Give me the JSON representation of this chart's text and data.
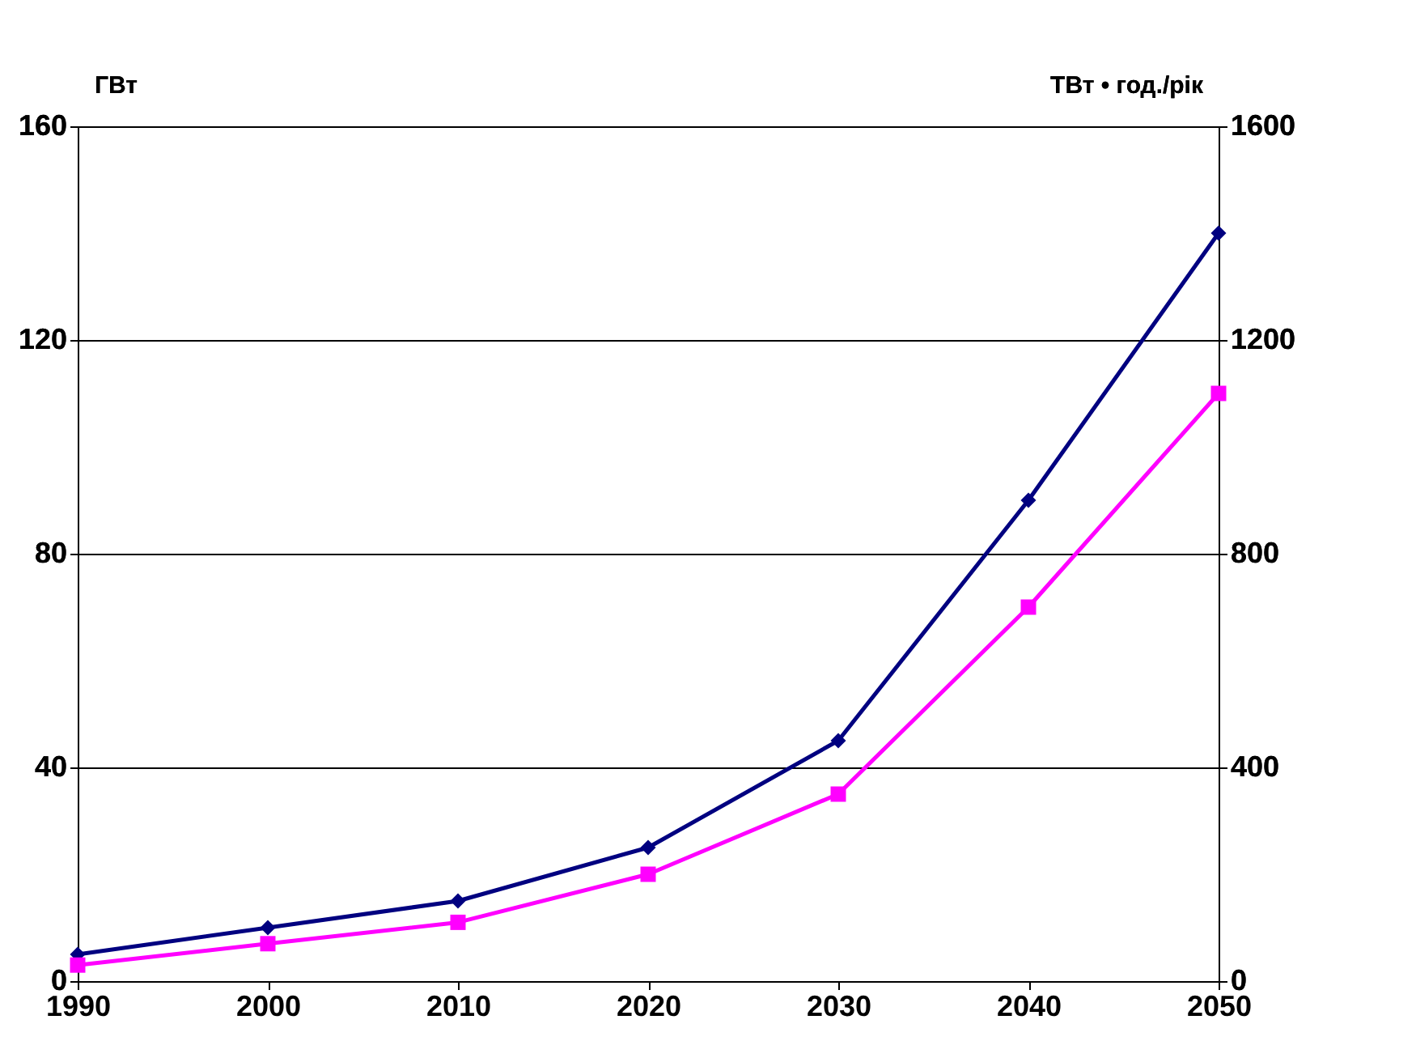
{
  "chart_data": {
    "type": "line",
    "ylabel": "ГВт",
    "y2label": "ТВт • год./рік",
    "x": [
      1990,
      2000,
      2010,
      2020,
      2030,
      2040,
      2050
    ],
    "xlim": [
      1990,
      2050
    ],
    "xticks": [
      1990,
      2000,
      2010,
      2020,
      2030,
      2040,
      2050
    ],
    "ylim": [
      0,
      160
    ],
    "yticks": [
      0,
      40,
      80,
      120,
      160
    ],
    "y2lim": [
      0,
      1600
    ],
    "y2ticks": [
      0,
      400,
      800,
      1200,
      1600
    ],
    "grid": "y",
    "line_style": "solid",
    "series": [
      {
        "color": "#000080",
        "marker": "diamond",
        "values": [
          5,
          10,
          15,
          25,
          45,
          90,
          140
        ]
      },
      {
        "color": "#ff00ff",
        "marker": "square",
        "axis": "y2",
        "values": [
          30,
          70,
          110,
          200,
          350,
          700,
          1100
        ]
      }
    ]
  }
}
